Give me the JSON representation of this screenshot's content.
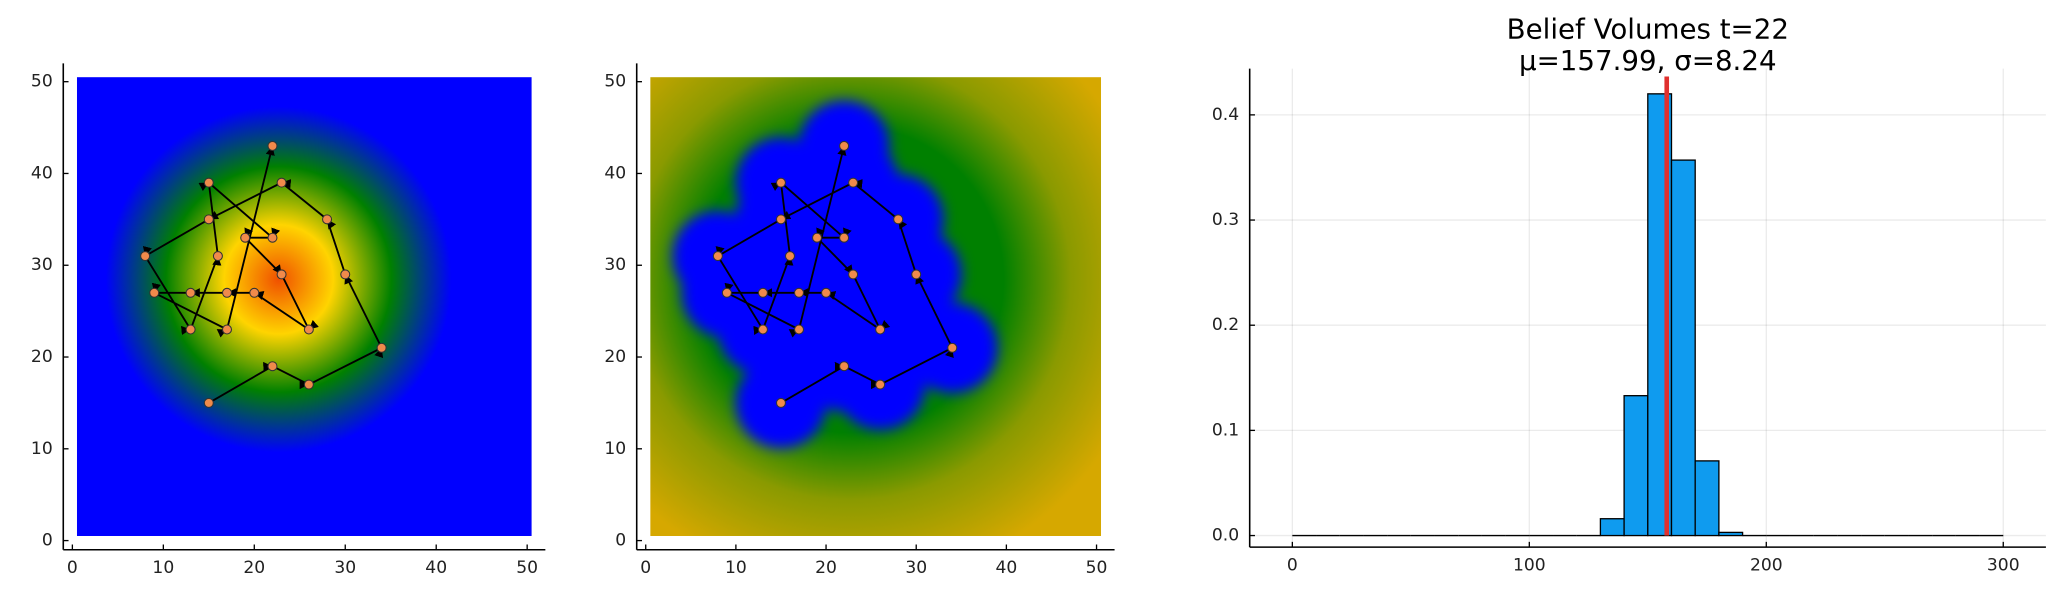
{
  "chart_data": [
    {
      "type": "trajectory",
      "x": [
        15,
        22,
        26,
        34,
        30,
        28,
        23,
        15,
        8,
        13,
        16,
        15,
        22,
        19,
        23,
        26,
        20,
        17,
        13,
        9,
        17,
        22
      ],
      "values": [
        15,
        19,
        17,
        21,
        29,
        35,
        39,
        35,
        31,
        23,
        31,
        39,
        33,
        33,
        29,
        23,
        27,
        27,
        27,
        27,
        23,
        43
      ],
      "xlim": [
        -1,
        52
      ],
      "ylim": [
        -1,
        52
      ],
      "xticks": [
        0,
        10,
        20,
        30,
        40,
        50
      ],
      "yticks": [
        0,
        10,
        20,
        30,
        40,
        50
      ],
      "colors": [
        "#0000ff",
        "#008000",
        "#ffd400",
        "#f05000"
      ],
      "marker_color": "#f08a4b",
      "line_color": "#000000"
    },
    {
      "type": "trajectory",
      "x": [
        15,
        22,
        26,
        34,
        30,
        28,
        23,
        15,
        8,
        13,
        16,
        15,
        22,
        19,
        23,
        26,
        20,
        17,
        13,
        9,
        17,
        22
      ],
      "values": [
        15,
        19,
        17,
        21,
        29,
        35,
        39,
        35,
        31,
        23,
        31,
        39,
        33,
        33,
        29,
        23,
        27,
        27,
        27,
        27,
        23,
        43
      ],
      "xlim": [
        -1,
        52
      ],
      "ylim": [
        -1,
        52
      ],
      "xticks": [
        0,
        10,
        20,
        30,
        40,
        50
      ],
      "yticks": [
        0,
        10,
        20,
        30,
        40,
        50
      ],
      "colors": [
        "#0000ff",
        "#008000",
        "#8a9a00",
        "#d6a800"
      ],
      "marker_color": "#f08a4b",
      "line_color": "#000000"
    },
    {
      "type": "histogram",
      "title": "Belief Volumes t=22",
      "subtitle": "μ=157.99, σ=8.24",
      "bins": [
        0,
        10,
        20,
        30,
        40,
        50,
        60,
        70,
        80,
        90,
        100,
        110,
        120,
        130,
        140,
        150,
        160,
        170,
        180,
        190,
        200,
        210,
        220,
        230,
        240,
        250,
        260,
        270,
        280,
        290,
        300
      ],
      "values": [
        0,
        0,
        0,
        0,
        0,
        0,
        0,
        0,
        0,
        0,
        0,
        0,
        0,
        0.016,
        0.133,
        0.42,
        0.357,
        0.071,
        0.003,
        0,
        0,
        0,
        0,
        0,
        0,
        0,
        0,
        0,
        0,
        0
      ],
      "color": "#0f9bef",
      "mean": 157.99,
      "mean_color": "#e0302e",
      "xlim": [
        -18,
        318
      ],
      "ylim": [
        -0.011,
        0.444
      ],
      "xticks": [
        0,
        100,
        200,
        300
      ],
      "yticks": [
        {
          "value": 0,
          "label": "0.0"
        },
        0.1,
        0.2,
        0.3,
        0.4
      ],
      "grid": true
    }
  ]
}
